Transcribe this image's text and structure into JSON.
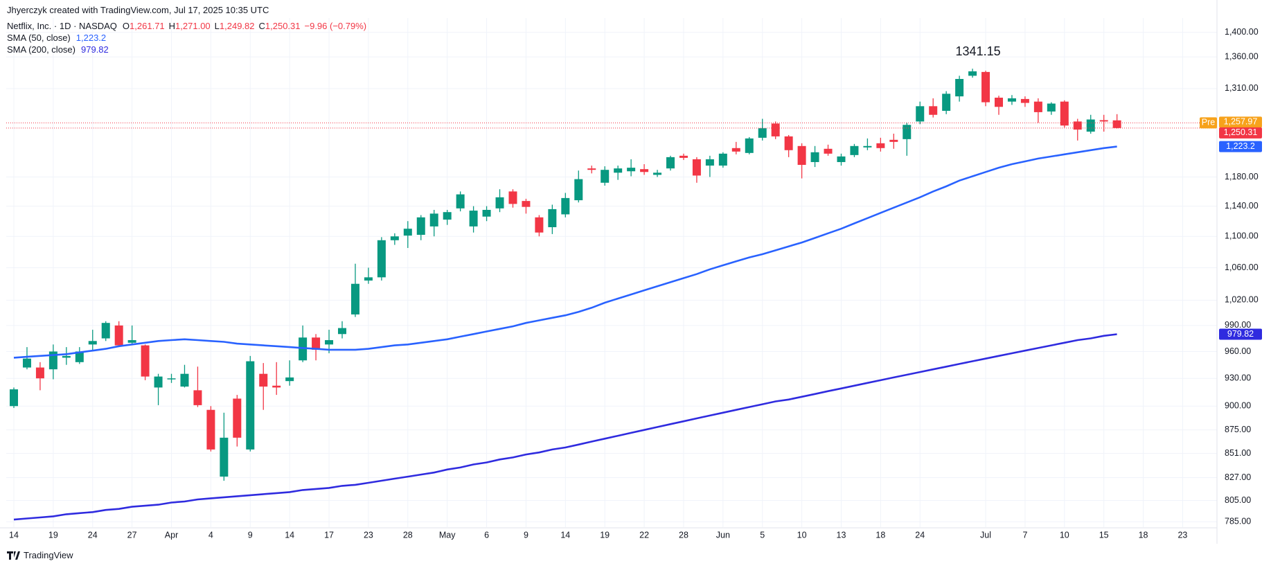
{
  "chart_data": {
    "type": "candlestick",
    "title": "Jhyerczyk created with TradingView.com, Jul 17, 2025 10:35 UTC",
    "symbol": "Netflix, Inc. · 1D · NASDAQ",
    "ohlc_header": [
      {
        "key": "O",
        "label": "1,261.71"
      },
      {
        "key": "H",
        "label": "1,271.00"
      },
      {
        "key": "L",
        "label": "1,249.82"
      },
      {
        "key": "C",
        "label": "1,250.31"
      }
    ],
    "change": "−9.96 (−0.79%)",
    "log_scale": true,
    "grid": true,
    "up_color": "#089981",
    "down_color": "#f23645",
    "categories": [
      "14",
      null,
      null,
      "19",
      null,
      null,
      "24",
      null,
      null,
      "27",
      null,
      null,
      "Apr",
      null,
      null,
      "4",
      null,
      null,
      "9",
      null,
      null,
      "14",
      null,
      null,
      "17",
      null,
      null,
      "23",
      null,
      null,
      "28",
      null,
      null,
      "May",
      null,
      null,
      "6",
      null,
      null,
      "9",
      null,
      null,
      "14",
      null,
      null,
      "19",
      null,
      null,
      "22",
      null,
      null,
      "28",
      null,
      null,
      "Jun",
      null,
      null,
      "5",
      null,
      null,
      "10",
      null,
      null,
      "13",
      null,
      null,
      "18",
      null,
      null,
      "24",
      null,
      null,
      null,
      null,
      "Jul",
      null,
      null,
      "7",
      null,
      null,
      "10",
      null,
      null,
      "15",
      null,
      null,
      "18",
      null,
      null,
      "23"
    ],
    "open": [
      900,
      942,
      942,
      940,
      953,
      948,
      968,
      975,
      990,
      970,
      967,
      920,
      929,
      921,
      917,
      896,
      828,
      908,
      855,
      935,
      922,
      927,
      950,
      976,
      968,
      980,
      1003,
      1044,
      1048,
      1095,
      1101,
      1102,
      1113,
      1122,
      1137,
      1113,
      1126,
      1137,
      1160,
      1147,
      1125,
      1112,
      1129,
      1148,
      1192,
      1172,
      1186,
      1188,
      1191,
      1183,
      1192,
      1210,
      1205,
      1196,
      1196,
      1221,
      1214,
      1236,
      1257,
      1238,
      1224,
      1201,
      1220,
      1201,
      1211,
      1222,
      1228,
      1233,
      1234,
      1260,
      1283,
      1276,
      1298,
      1330,
      1336,
      1296,
      1290,
      1294,
      1290,
      1275,
      1290,
      1260,
      1245,
      1262,
      1261.71,
      null,
      null,
      null,
      null,
      null
    ],
    "high": [
      920,
      965,
      948,
      968,
      965,
      965,
      985,
      995,
      995,
      990,
      968,
      935,
      935,
      945,
      943,
      900,
      893,
      912,
      955,
      947,
      948,
      950,
      990,
      980,
      985,
      995,
      1065,
      1060,
      1099,
      1104,
      1120,
      1128,
      1135,
      1135,
      1160,
      1140,
      1140,
      1163,
      1163,
      1150,
      1128,
      1142,
      1158,
      1189,
      1196,
      1195,
      1196,
      1205,
      1198,
      1190,
      1210,
      1213,
      1208,
      1210,
      1215,
      1230,
      1237,
      1264,
      1260,
      1240,
      1228,
      1224,
      1226,
      1213,
      1227,
      1235,
      1236,
      1242,
      1258,
      1290,
      1295,
      1306,
      1330,
      1341.15,
      1338,
      1299,
      1300,
      1298,
      1295,
      1289,
      1292,
      1264,
      1270,
      1270,
      1271,
      null,
      null,
      null,
      null,
      null
    ],
    "low": [
      898,
      940,
      917,
      929,
      945,
      946,
      960,
      972,
      965,
      968,
      928,
      901,
      925,
      920,
      899,
      853,
      824,
      858,
      853,
      896,
      912,
      922,
      948,
      950,
      958,
      975,
      1000,
      1040,
      1044,
      1089,
      1085,
      1095,
      1100,
      1115,
      1133,
      1105,
      1120,
      1132,
      1138,
      1130,
      1100,
      1103,
      1125,
      1145,
      1185,
      1168,
      1176,
      1181,
      1183,
      1180,
      1189,
      1204,
      1172,
      1180,
      1193,
      1212,
      1212,
      1232,
      1234,
      1208,
      1178,
      1194,
      1210,
      1196,
      1208,
      1218,
      1216,
      1220,
      1210,
      1256,
      1266,
      1271,
      1290,
      1327,
      1283,
      1270,
      1285,
      1282,
      1258,
      1270,
      1251,
      1232,
      1242,
      1245,
      1249.82,
      null,
      null,
      null,
      null,
      null
    ],
    "close": [
      918,
      952,
      930,
      960,
      955,
      960,
      972,
      993,
      967,
      973,
      932,
      932,
      930,
      935,
      901,
      855,
      867,
      867,
      949,
      921,
      920,
      931,
      976,
      962,
      973,
      987,
      1040,
      1048,
      1095,
      1100,
      1110,
      1125,
      1130,
      1132,
      1156,
      1134,
      1135,
      1152,
      1143,
      1139,
      1105,
      1136,
      1151,
      1177,
      1190,
      1190,
      1192,
      1193,
      1187,
      1186,
      1208,
      1207,
      1182,
      1205,
      1213,
      1216,
      1235,
      1250,
      1238,
      1218,
      1197,
      1215,
      1213,
      1209,
      1224,
      1224,
      1221,
      1230,
      1255,
      1283,
      1270,
      1302,
      1325,
      1337,
      1289,
      1282,
      1295,
      1288,
      1274,
      1287,
      1254,
      1248,
      1263,
      1260,
      1250.31,
      null,
      null,
      null,
      null,
      null
    ],
    "series": [
      {
        "name": "SMA (50, close)",
        "color": "#2962ff",
        "value_label": "1,223.2",
        "values": [
          953,
          954,
          955,
          956,
          957,
          959,
          961,
          963,
          966,
          968,
          970,
          972,
          973,
          974,
          973,
          972,
          971,
          969,
          968,
          967,
          966,
          965,
          964,
          963,
          962,
          962,
          962,
          963,
          965,
          967,
          968,
          970,
          972,
          974,
          977,
          980,
          983,
          986,
          989,
          993,
          996,
          999,
          1002,
          1006,
          1011,
          1017,
          1022,
          1027,
          1032,
          1037,
          1042,
          1047,
          1052,
          1058,
          1063,
          1068,
          1073,
          1077,
          1082,
          1087,
          1092,
          1098,
          1104,
          1110,
          1117,
          1124,
          1131,
          1138,
          1145,
          1152,
          1160,
          1167,
          1175,
          1181,
          1187,
          1193,
          1198,
          1202,
          1206,
          1209,
          1212,
          1215,
          1218,
          1221,
          1223.2,
          null,
          null,
          null,
          null,
          null
        ]
      },
      {
        "name": "SMA (200, close)",
        "color": "#2f2bdf",
        "value_label": "979.82",
        "values": [
          787,
          788,
          789,
          790,
          792,
          793,
          794,
          796,
          797,
          799,
          800,
          801,
          803,
          804,
          806,
          807,
          808,
          809,
          810,
          811,
          812,
          813,
          815,
          816,
          817,
          819,
          820,
          822,
          824,
          826,
          828,
          830,
          832,
          835,
          837,
          840,
          842,
          845,
          847,
          850,
          852,
          855,
          857,
          860,
          863,
          866,
          869,
          872,
          875,
          878,
          881,
          884,
          887,
          890,
          893,
          896,
          899,
          902,
          905,
          907,
          910,
          913,
          916,
          919,
          922,
          925,
          928,
          931,
          934,
          937,
          940,
          943,
          946,
          949,
          952,
          955,
          958,
          961,
          964,
          967,
          970,
          973,
          975,
          978,
          979.82,
          null,
          null,
          null,
          null,
          null
        ]
      }
    ],
    "last_price_label": "1,250.31",
    "premarket": {
      "label": "Pre",
      "value": 1257.97,
      "value_label": "1,257.97",
      "color": "#f7a21b"
    },
    "annotation": {
      "label": "1341.15",
      "value": 1341.15
    },
    "ylim": [
      780,
      1424
    ],
    "yticks": [
      {
        "value": 785,
        "label": "785.00"
      },
      {
        "value": 805,
        "label": "805.00"
      },
      {
        "value": 827,
        "label": "827.00"
      },
      {
        "value": 851,
        "label": "851.00"
      },
      {
        "value": 875,
        "label": "875.00"
      },
      {
        "value": 900,
        "label": "900.00"
      },
      {
        "value": 930,
        "label": "930.00"
      },
      {
        "value": 960,
        "label": "960.00"
      },
      {
        "value": 990,
        "label": "990.00"
      },
      {
        "value": 1020,
        "label": "1,020.00"
      },
      {
        "value": 1060,
        "label": "1,060.00"
      },
      {
        "value": 1100,
        "label": "1,100.00"
      },
      {
        "value": 1140,
        "label": "1,140.00"
      },
      {
        "value": 1180,
        "label": "1,180.00"
      },
      {
        "value": 1310,
        "label": "1,310.00"
      },
      {
        "value": 1360,
        "label": "1,360.00"
      },
      {
        "value": 1400,
        "label": "1,400.00"
      }
    ]
  },
  "footer": "TradingView"
}
